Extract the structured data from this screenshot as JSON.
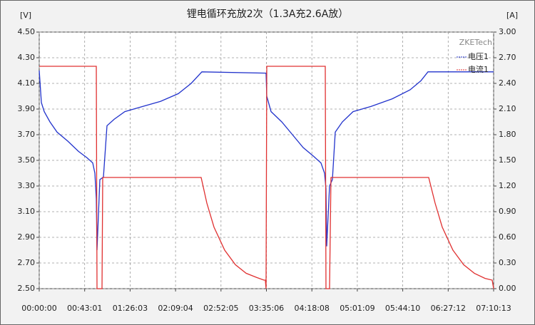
{
  "chart_data": {
    "type": "line",
    "title": "锂电循环充放2次（1.3A充2.6A放）",
    "y_label": "[V]",
    "y2_label": "[A]",
    "legend_title": "ZKETech",
    "legend_position": "top-right",
    "grid": true,
    "xlim": [
      0,
      25813
    ],
    "xticks": [
      {
        "value": 0,
        "label": "00:00:00"
      },
      {
        "value": 2581,
        "label": "00:43:01"
      },
      {
        "value": 5163,
        "label": "01:26:03"
      },
      {
        "value": 7744,
        "label": "02:09:04"
      },
      {
        "value": 10325,
        "label": "02:52:05"
      },
      {
        "value": 12906,
        "label": "03:35:06"
      },
      {
        "value": 15488,
        "label": "04:18:08"
      },
      {
        "value": 18069,
        "label": "05:01:09"
      },
      {
        "value": 20650,
        "label": "05:44:10"
      },
      {
        "value": 23232,
        "label": "06:27:12"
      },
      {
        "value": 25813,
        "label": "07:10:13"
      }
    ],
    "ylim": [
      2.5,
      4.5
    ],
    "yticks": [
      {
        "value": 2.5,
        "label": "2.50"
      },
      {
        "value": 2.7,
        "label": "2.70"
      },
      {
        "value": 2.9,
        "label": "2.90"
      },
      {
        "value": 3.1,
        "label": "3.10"
      },
      {
        "value": 3.3,
        "label": "3.30"
      },
      {
        "value": 3.5,
        "label": "3.50"
      },
      {
        "value": 3.7,
        "label": "3.70"
      },
      {
        "value": 3.9,
        "label": "3.90"
      },
      {
        "value": 4.1,
        "label": "4.10"
      },
      {
        "value": 4.3,
        "label": "4.30"
      },
      {
        "value": 4.5,
        "label": "4.50"
      }
    ],
    "y2lim": [
      0,
      3
    ],
    "y2ticks": [
      {
        "value": 0,
        "label": "0.00"
      },
      {
        "value": 0.3,
        "label": "0.30"
      },
      {
        "value": 0.6,
        "label": "0.60"
      },
      {
        "value": 0.9,
        "label": "0.90"
      },
      {
        "value": 1.2,
        "label": "1.20"
      },
      {
        "value": 1.5,
        "label": "1.50"
      },
      {
        "value": 1.8,
        "label": "1.80"
      },
      {
        "value": 2.1,
        "label": "2.10"
      },
      {
        "value": 2.4,
        "label": "2.40"
      },
      {
        "value": 2.7,
        "label": "2.70"
      },
      {
        "value": 3,
        "label": "3.00"
      }
    ],
    "series": [
      {
        "name": "电压1",
        "color": "#2233cc",
        "axis": "y",
        "x": [
          0,
          122,
          284,
          608,
          1013,
          1621,
          2229,
          2715,
          3039,
          3161,
          3242,
          3282,
          3444,
          3647,
          3849,
          4255,
          4862,
          5875,
          6888,
          7901,
          8631,
          9239,
          12885,
          12926,
          13169,
          13777,
          14385,
          14992,
          15600,
          16005,
          16208,
          16289,
          16330,
          16492,
          16654,
          16816,
          17221,
          17829,
          18842,
          20057,
          21070,
          21678,
          22083,
          25813
        ],
        "values": [
          4.2,
          3.95,
          3.88,
          3.8,
          3.72,
          3.65,
          3.57,
          3.52,
          3.48,
          3.4,
          3.2,
          2.8,
          3.35,
          3.37,
          3.77,
          3.82,
          3.88,
          3.92,
          3.96,
          4.02,
          4.1,
          4.19,
          4.18,
          4.0,
          3.88,
          3.8,
          3.7,
          3.6,
          3.53,
          3.48,
          3.4,
          3.28,
          2.83,
          3.3,
          3.35,
          3.72,
          3.8,
          3.88,
          3.92,
          3.98,
          4.05,
          4.12,
          4.19,
          4.19
        ]
      },
      {
        "name": "电流1",
        "color": "#e03030",
        "axis": "y2",
        "x": [
          0,
          3242,
          3282,
          3566,
          3606,
          9198,
          9522,
          9927,
          10535,
          11143,
          11751,
          12359,
          12764,
          12845,
          12885,
          12926,
          16249,
          16289,
          16492,
          16573,
          22124,
          22488,
          22893,
          23501,
          24109,
          24717,
          25325,
          25730,
          25813
        ],
        "values": [
          2.6,
          2.6,
          0,
          0,
          1.3,
          1.3,
          1.0,
          0.72,
          0.45,
          0.28,
          0.18,
          0.13,
          0.1,
          0.1,
          0,
          2.6,
          2.6,
          0,
          0,
          1.3,
          1.3,
          1.0,
          0.72,
          0.45,
          0.28,
          0.18,
          0.12,
          0.1,
          0
        ]
      }
    ]
  }
}
